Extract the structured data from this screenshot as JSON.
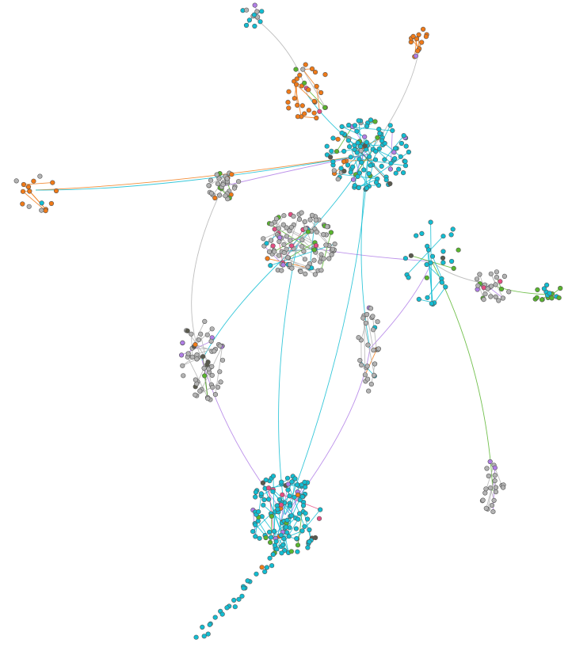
{
  "palette": {
    "grey": "#b3b3b3",
    "cyan": "#12bdd2",
    "orange": "#f07a18",
    "purple": "#b07ee6",
    "green": "#59b52e",
    "pink": "#e64e83",
    "dark": "#5a5a4e"
  },
  "node_outline_color": "#555555",
  "background_color": "#ffffff",
  "graph_type": "force-directed network",
  "clusters": [
    {
      "name": "top-left-tail",
      "color": "cyan",
      "count": 12,
      "mix": [
        "purple",
        "grey"
      ]
    },
    {
      "name": "upper-orange-group",
      "color": "orange",
      "count": 34,
      "mix": [
        "grey",
        "pink",
        "green"
      ]
    },
    {
      "name": "top-right-group",
      "color": "orange",
      "count": 14,
      "mix": [
        "cyan",
        "green",
        "purple"
      ]
    },
    {
      "name": "central-cyan-hub",
      "color": "cyan",
      "count": 120,
      "mix": [
        "grey",
        "orange",
        "green",
        "purple",
        "dark"
      ]
    },
    {
      "name": "left-far-orange",
      "color": "orange",
      "count": 16,
      "mix": [
        "grey",
        "cyan"
      ]
    },
    {
      "name": "left-grey-cluster",
      "color": "grey",
      "count": 34,
      "mix": [
        "orange",
        "green"
      ]
    },
    {
      "name": "middle-grey-orange",
      "color": "grey",
      "count": 110,
      "mix": [
        "orange",
        "purple",
        "pink",
        "green",
        "cyan"
      ]
    },
    {
      "name": "right-grey-purple",
      "color": "grey",
      "count": 26,
      "mix": [
        "purple",
        "green",
        "pink"
      ]
    },
    {
      "name": "far-right-green",
      "color": "green",
      "count": 16,
      "mix": [
        "cyan"
      ]
    },
    {
      "name": "mid-right-cyan",
      "color": "cyan",
      "count": 30,
      "mix": [
        "orange",
        "green",
        "purple",
        "dark"
      ]
    },
    {
      "name": "left-lower-grey-purple",
      "color": "grey",
      "count": 60,
      "mix": [
        "purple",
        "green",
        "dark",
        "orange"
      ]
    },
    {
      "name": "center-lower-grey",
      "color": "grey",
      "count": 30,
      "mix": [
        "purple",
        "cyan",
        "orange"
      ]
    },
    {
      "name": "lower-right-grey",
      "color": "grey",
      "count": 22,
      "mix": [
        "purple"
      ]
    },
    {
      "name": "bottom-cyan-chain",
      "color": "cyan",
      "count": 130,
      "mix": [
        "dark",
        "green",
        "orange",
        "pink",
        "purple"
      ]
    }
  ]
}
